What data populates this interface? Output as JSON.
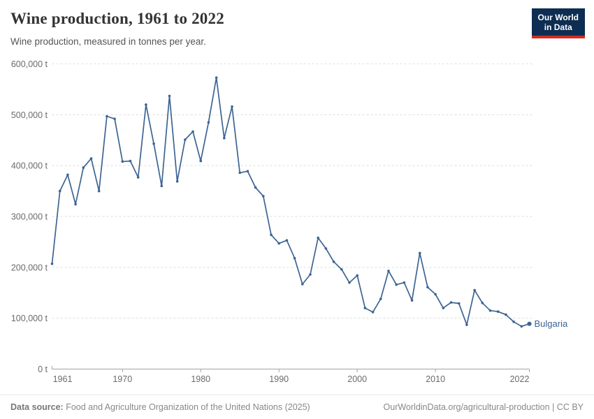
{
  "header": {
    "title": "Wine production, 1961 to 2022",
    "subtitle": "Wine production, measured in tonnes per year."
  },
  "logo": {
    "line1": "Our World",
    "line2": "in Data",
    "bg_color": "#0d2d52",
    "accent_color": "#d52b1e"
  },
  "chart_data": {
    "type": "line",
    "title": "Wine production, 1961 to 2022",
    "subtitle": "Wine production, measured in tonnes per year.",
    "unit": "t",
    "xlim": [
      1961,
      2022
    ],
    "ylim": [
      0,
      600000
    ],
    "grid": "horizontal-dashed",
    "legend_position": "end-of-line-label",
    "x_ticks": [
      1961,
      1970,
      1980,
      1990,
      2000,
      2010,
      2022
    ],
    "y_ticks": [
      0,
      100000,
      200000,
      300000,
      400000,
      500000,
      600000
    ],
    "colors": {
      "grid": "#dedede",
      "axis": "#a3a3a3",
      "tick_text": "#6b6b6b"
    },
    "series": [
      {
        "name": "Bulgaria",
        "color": "#3d6493",
        "x": [
          1961,
          1962,
          1963,
          1964,
          1965,
          1966,
          1967,
          1968,
          1969,
          1970,
          1971,
          1972,
          1973,
          1974,
          1975,
          1976,
          1977,
          1978,
          1979,
          1980,
          1981,
          1982,
          1983,
          1984,
          1985,
          1986,
          1987,
          1988,
          1989,
          1990,
          1991,
          1992,
          1993,
          1994,
          1995,
          1996,
          1997,
          1998,
          1999,
          2000,
          2001,
          2002,
          2003,
          2004,
          2005,
          2006,
          2007,
          2008,
          2009,
          2010,
          2011,
          2012,
          2013,
          2014,
          2015,
          2016,
          2017,
          2018,
          2019,
          2020,
          2021,
          2022
        ],
        "values": [
          207000,
          350000,
          382000,
          324000,
          396000,
          414000,
          350000,
          497000,
          492000,
          408000,
          409000,
          377000,
          520000,
          443000,
          360000,
          537000,
          369000,
          451000,
          467000,
          409000,
          485000,
          573000,
          454000,
          516000,
          386000,
          389000,
          357000,
          340000,
          264000,
          247000,
          253000,
          218000,
          167000,
          186000,
          258000,
          237000,
          211000,
          196000,
          170000,
          184000,
          120000,
          112000,
          138000,
          193000,
          166000,
          170000,
          135000,
          228000,
          161000,
          147000,
          120000,
          131000,
          129000,
          87000,
          155000,
          130000,
          115000,
          113000,
          107000,
          93000,
          84000,
          89000
        ]
      }
    ]
  },
  "footer": {
    "source_label": "Data source:",
    "source_text": " Food and Agriculture Organization of the United Nations (2025)",
    "link_text": "OurWorldinData.org/agricultural-production",
    "separator": " | ",
    "license_text": "CC BY"
  }
}
